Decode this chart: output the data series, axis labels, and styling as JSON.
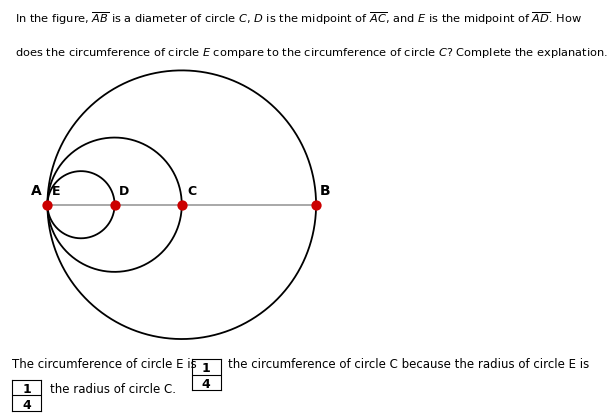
{
  "bg_color": "#ffffff",
  "line_color": "#999999",
  "circle_color": "#000000",
  "dot_color": "#cc0000",
  "label_A": "A",
  "label_B": "B",
  "label_C": "C",
  "label_D": "D",
  "label_E": "E",
  "text_line1": "The circumference of circle E is",
  "text_line2": "the circumference of circle C because the radius of circle E is",
  "text_line3": "the radius of circle C.",
  "frac_num1": "1",
  "frac_den1": "4",
  "frac_num2": "1",
  "frac_den2": "4",
  "header1": "In the figure, ",
  "header1_over_AB": "AB",
  "header1_mid": " is a diameter of circle ",
  "header1_C": "C",
  "header1_cont": ", ",
  "header1_D": "D",
  "header1_cont2": " is the midpoint of ",
  "header1_over_AC": "AC",
  "header1_cont3": ", and ",
  "header1_E": "E",
  "header1_cont4": " is the midpoint of ",
  "header1_over_AD": "AD",
  "header1_end": ". How",
  "header2": "does the circumference of circle ",
  "header2_E": "E",
  "header2_cont": " compare to the circumference of circle ",
  "header2_C": "C",
  "header2_end": "? Complete the explanation."
}
